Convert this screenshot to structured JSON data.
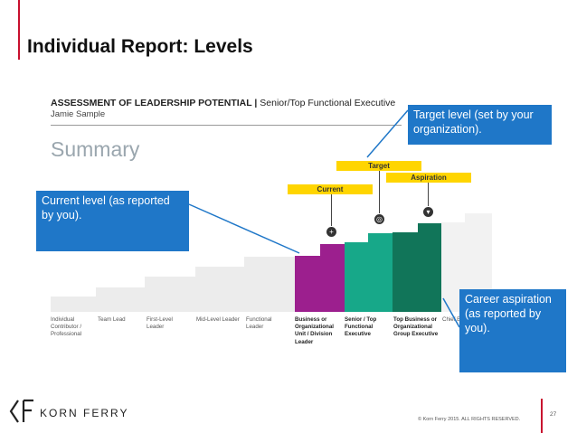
{
  "slide": {
    "title": "Individual Report: Levels",
    "page_number": "27",
    "copyright": "© Korn Ferry 2015. ALL RIGHTS RESERVED.",
    "brand": "KORN FERRY"
  },
  "report": {
    "header_bold": "ASSESSMENT OF LEADERSHIP POTENTIAL",
    "header_sep": " | ",
    "header_rest": "Senior/Top Functional Executive",
    "name": "Jamie Sample",
    "section": "Summary"
  },
  "levels": [
    {
      "label": "Individual Contributor / Professional"
    },
    {
      "label": "Team Lead"
    },
    {
      "label": "First-Level Leader"
    },
    {
      "label": "Mid-Level Leader"
    },
    {
      "label": "Functional Leader"
    },
    {
      "label": "Business or Organizational Unit / Division Leader"
    },
    {
      "label": "Senior / Top Functional Executive"
    },
    {
      "label": "Top Business or Organizational Group Executive"
    },
    {
      "label": "Chief Ex... Officer / Organiz... Executive"
    }
  ],
  "tags": {
    "current": "Current",
    "target": "Target",
    "aspiration": "Aspiration"
  },
  "callouts": {
    "current": "Current level (as reported by you).",
    "target": "Target level (set by your organization).",
    "aspiration": "Career aspiration (as reported by you)."
  },
  "colors": {
    "accent_red": "#c8102e",
    "callout_blue": "#1f77c8",
    "current": "#9c1f8e",
    "target": "#17a889",
    "aspiration": "#117559",
    "tag_yellow": "#ffd500",
    "step_gray": "#ececec"
  }
}
